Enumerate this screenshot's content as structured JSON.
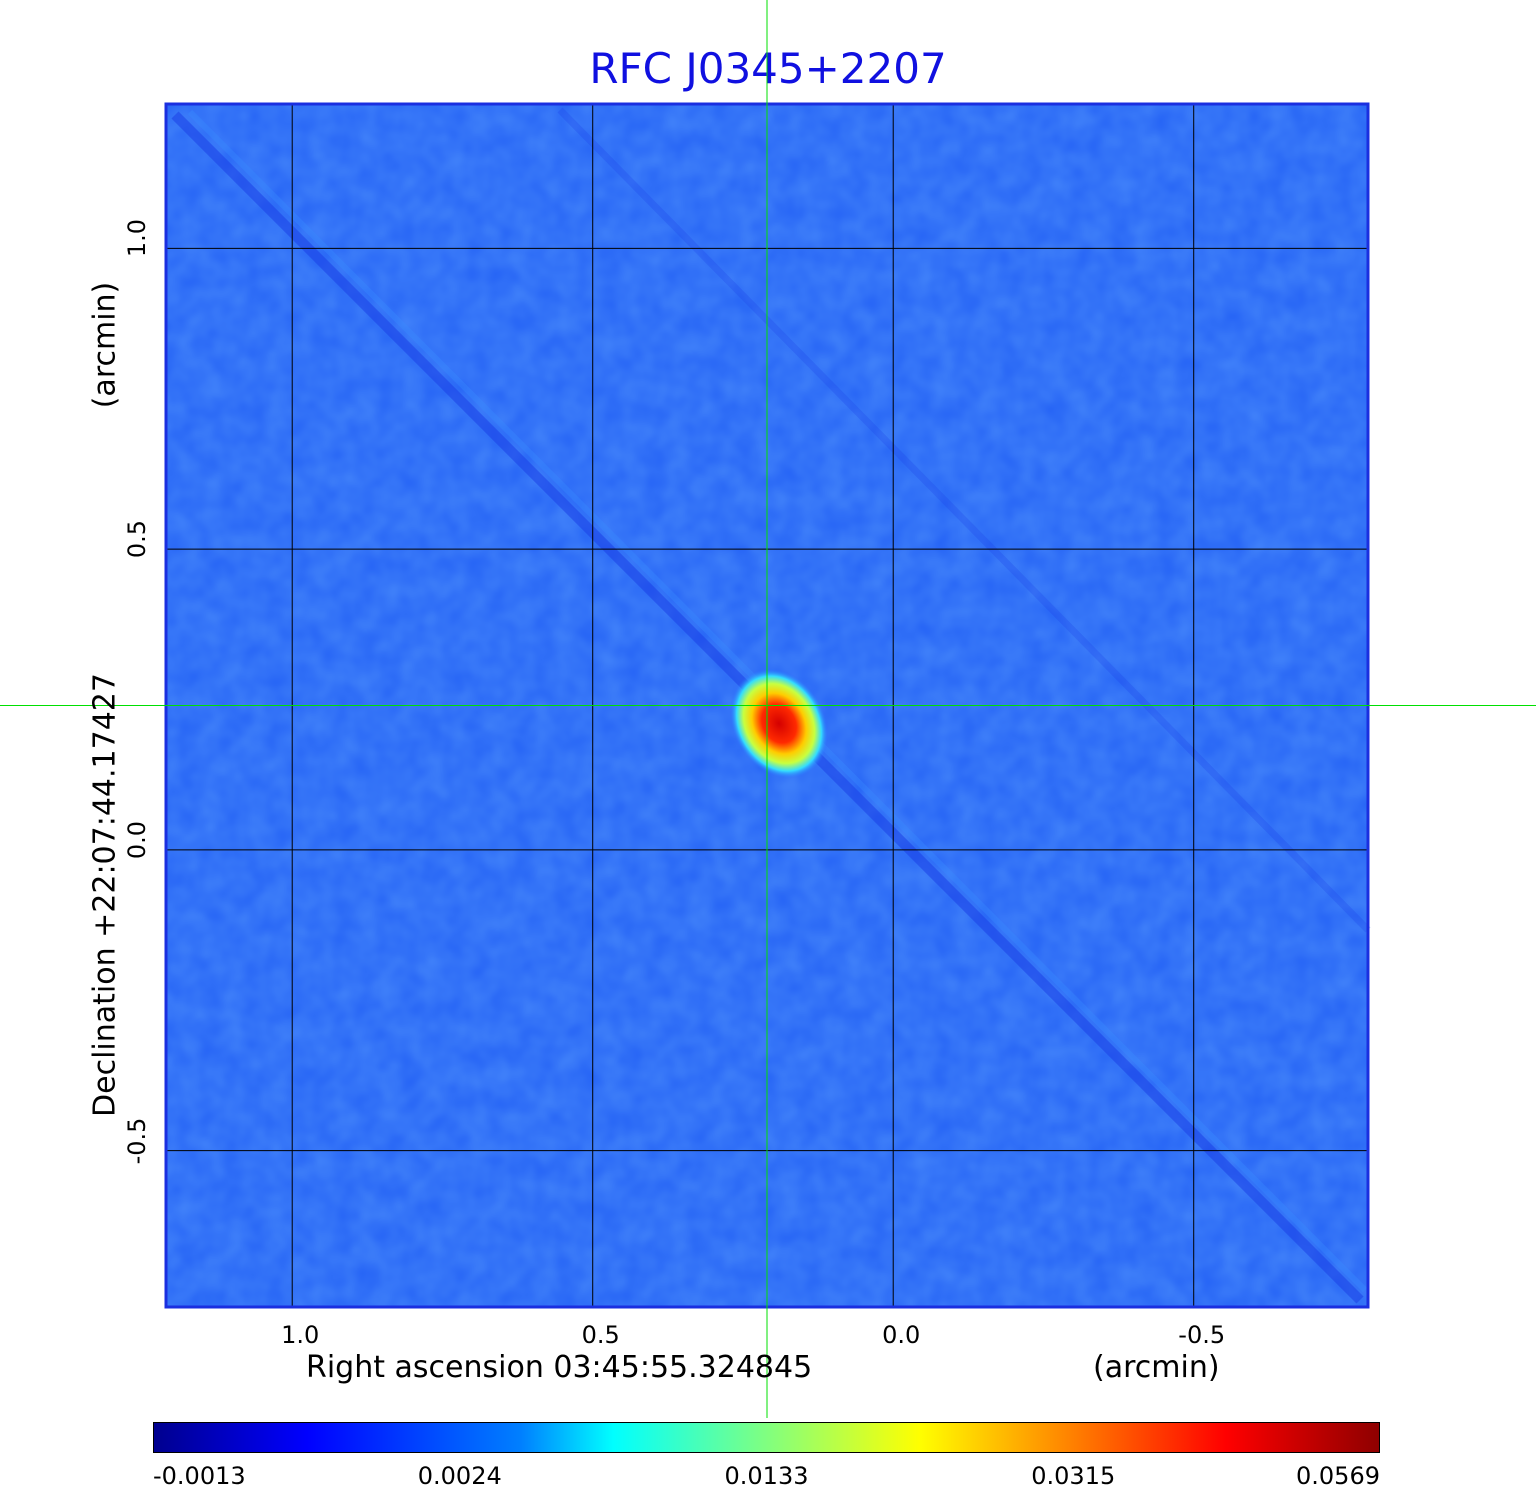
{
  "chart_data": {
    "type": "heatmap",
    "title": "RFC J0345+2207",
    "xlabel": "Right ascension  03:45:55.324845",
    "xunit": "(arcmin)",
    "ylabel": "Declination  +22:07:44.17427",
    "yunit": "(arcmin)",
    "xlim": [
      1.21,
      -0.79
    ],
    "ylim": [
      -0.76,
      1.24
    ],
    "x_ticks": [
      {
        "value": 1.0,
        "label": "1.0"
      },
      {
        "value": 0.5,
        "label": "0.5"
      },
      {
        "value": 0.0,
        "label": "0.0"
      },
      {
        "value": -0.5,
        "label": "-0.5"
      }
    ],
    "y_ticks": [
      {
        "value": 1.0,
        "label": "1.0"
      },
      {
        "value": 0.5,
        "label": "0.5"
      },
      {
        "value": 0.0,
        "label": "0.0"
      },
      {
        "value": -0.5,
        "label": "-0.5"
      }
    ],
    "grid": true,
    "crosshair": {
      "x": 0.21,
      "y": 0.24,
      "color": "#00e000"
    },
    "source_peak": {
      "x": 0.19,
      "y": 0.21,
      "value": 0.0569
    },
    "colorbar": {
      "labels": [
        "-0.0013",
        "0.0024",
        "0.0133",
        "0.0315",
        "0.0569"
      ],
      "min": -0.0013,
      "max": 0.0569,
      "colormap": "jet"
    }
  }
}
